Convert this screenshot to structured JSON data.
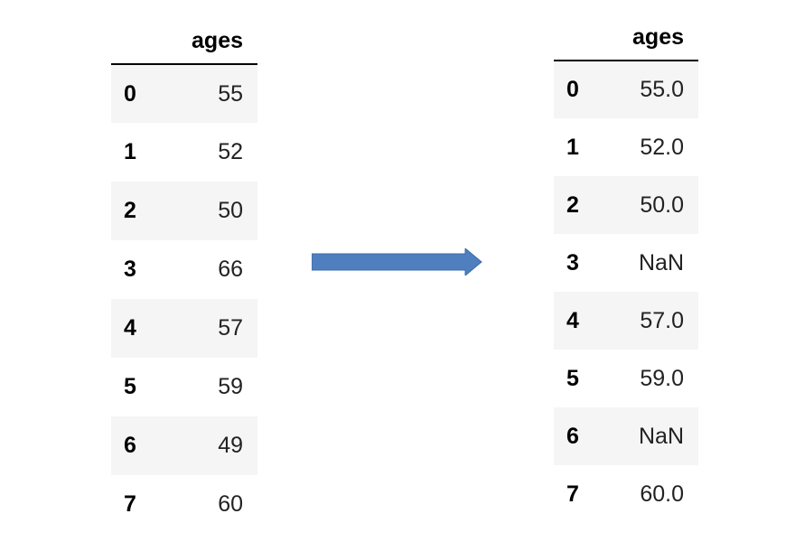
{
  "left_table": {
    "column": "ages",
    "rows": [
      {
        "index": "0",
        "value": "55"
      },
      {
        "index": "1",
        "value": "52"
      },
      {
        "index": "2",
        "value": "50"
      },
      {
        "index": "3",
        "value": "66"
      },
      {
        "index": "4",
        "value": "57"
      },
      {
        "index": "5",
        "value": "59"
      },
      {
        "index": "6",
        "value": "49"
      },
      {
        "index": "7",
        "value": "60"
      }
    ]
  },
  "right_table": {
    "column": "ages",
    "rows": [
      {
        "index": "0",
        "value": "55.0"
      },
      {
        "index": "1",
        "value": "52.0"
      },
      {
        "index": "2",
        "value": "50.0"
      },
      {
        "index": "3",
        "value": "NaN"
      },
      {
        "index": "4",
        "value": "57.0"
      },
      {
        "index": "5",
        "value": "59.0"
      },
      {
        "index": "6",
        "value": "NaN"
      },
      {
        "index": "7",
        "value": "60.0"
      }
    ]
  },
  "arrow": {
    "icon": "right-arrow-icon",
    "color": "#4f7fbf"
  }
}
